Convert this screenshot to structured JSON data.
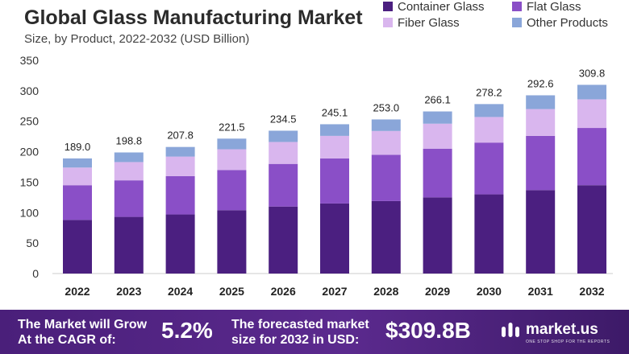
{
  "chart_data": {
    "type": "bar",
    "stacked": true,
    "title": "Global Glass Manufacturing Market",
    "subtitle": "Size, by Product, 2022-2032 (USD Billion)",
    "categories": [
      "2022",
      "2023",
      "2024",
      "2025",
      "2026",
      "2027",
      "2028",
      "2029",
      "2030",
      "2031",
      "2032"
    ],
    "series": [
      {
        "name": "Container Glass",
        "color": "#4b1f80",
        "values": [
          88,
          93,
          97,
          104,
          110,
          115,
          119,
          125,
          130,
          137,
          145
        ]
      },
      {
        "name": "Flat Glass",
        "color": "#8a4fc7",
        "values": [
          57,
          60,
          63,
          66,
          70,
          74,
          76,
          80,
          85,
          89,
          94
        ]
      },
      {
        "name": "Fiber Glass",
        "color": "#d9b6ee",
        "values": [
          29,
          30,
          32,
          34,
          36,
          37,
          39,
          41,
          42,
          44,
          47
        ]
      },
      {
        "name": "Other Products",
        "color": "#8aa6d9",
        "values": [
          15.0,
          15.8,
          15.8,
          17.5,
          18.5,
          19.1,
          19.0,
          20.1,
          21.2,
          22.6,
          23.8
        ]
      }
    ],
    "totals": [
      "189.0",
      "198.8",
      "207.8",
      "221.5",
      "234.5",
      "245.1",
      "253.0",
      "266.1",
      "278.2",
      "292.6",
      "309.8"
    ],
    "yticks": [
      0,
      50,
      100,
      150,
      200,
      250,
      300,
      350
    ],
    "ylim": [
      0,
      350
    ],
    "grid": false,
    "legend_position": "top-right"
  },
  "footer": {
    "cagr_text_line1": "The Market will Grow",
    "cagr_text_line2": "At the CAGR of:",
    "cagr_value": "5.2%",
    "forecast_text_line1": "The forecasted market",
    "forecast_text_line2": "size for 2032 in USD:",
    "forecast_value": "$309.8B",
    "logo_text": "market.us",
    "logo_tagline": "ONE STOP SHOP FOR THE REPORTS"
  }
}
